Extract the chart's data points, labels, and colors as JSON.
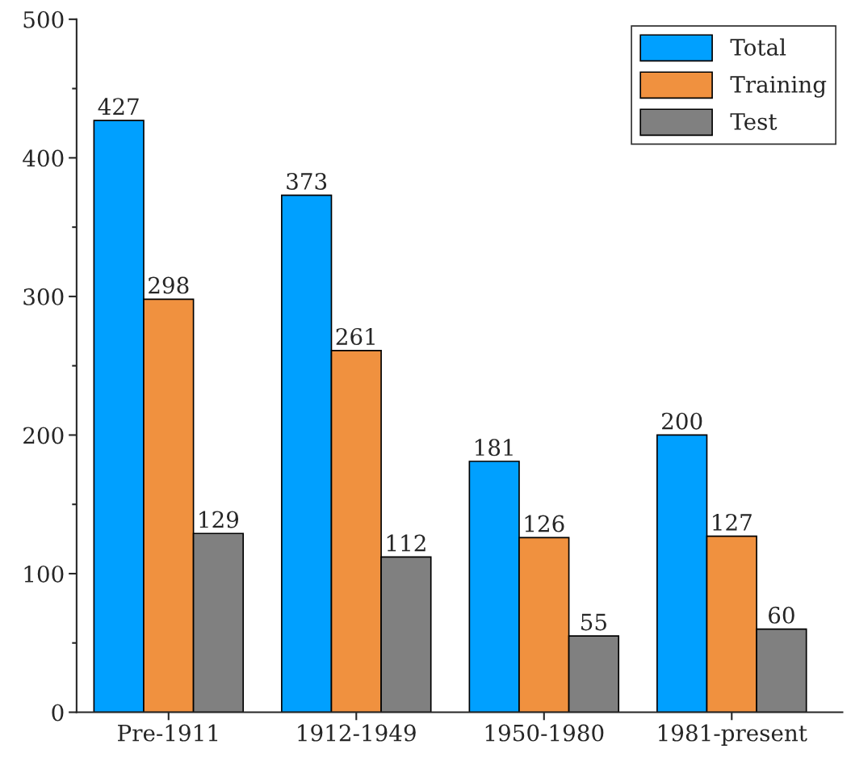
{
  "chart_data": {
    "type": "bar",
    "categories": [
      "Pre-1911",
      "1912-1949",
      "1950-1980",
      "1981-present"
    ],
    "series": [
      {
        "name": "Total",
        "color": "#00a0ff",
        "values": [
          427,
          373,
          181,
          200
        ]
      },
      {
        "name": "Training",
        "color": "#f0913f",
        "values": [
          298,
          261,
          126,
          127
        ]
      },
      {
        "name": "Test",
        "color": "#808080",
        "values": [
          129,
          112,
          55,
          60
        ]
      }
    ],
    "ylim": [
      0,
      500
    ],
    "yticks": [
      0,
      100,
      200,
      300,
      400,
      500
    ],
    "data_labels": true,
    "grid": false,
    "legend": "top right"
  }
}
